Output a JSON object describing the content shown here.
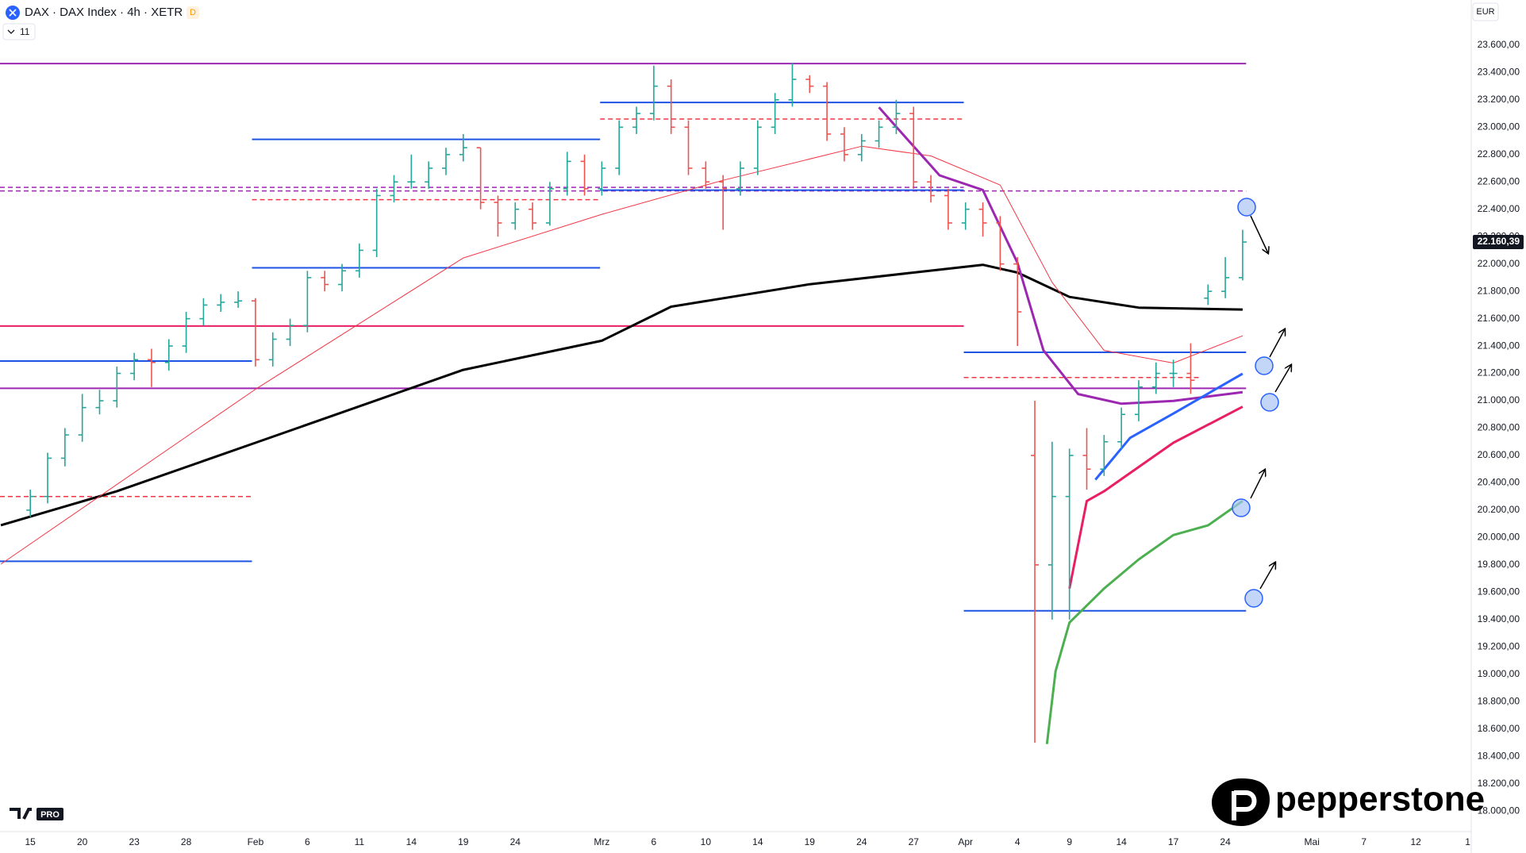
{
  "ui": {
    "badge": "D",
    "bars_count": "11",
    "currency": "EUR",
    "brand": "pepperstone",
    "tv_plan": "PRO"
  },
  "chart_data": {
    "type": "ohlc",
    "title": "DAX · DAX Index · 4h · XETR",
    "colors": {
      "up": "#26a69a",
      "down": "#ef5350"
    },
    "grid": false,
    "xlim": [
      -1.75,
      83.2
    ],
    "ylim": [
      17850,
      23930
    ],
    "xticks": [
      {
        "value": 0,
        "label": "15"
      },
      {
        "value": 3,
        "label": "20"
      },
      {
        "value": 6,
        "label": "23"
      },
      {
        "value": 9,
        "label": "28"
      },
      {
        "value": 13,
        "label": "Feb"
      },
      {
        "value": 16,
        "label": "6"
      },
      {
        "value": 19,
        "label": "11"
      },
      {
        "value": 22,
        "label": "14"
      },
      {
        "value": 25,
        "label": "19"
      },
      {
        "value": 28,
        "label": "24"
      },
      {
        "value": 33,
        "label": "Mrz"
      },
      {
        "value": 36,
        "label": "6"
      },
      {
        "value": 39,
        "label": "10"
      },
      {
        "value": 42,
        "label": "14"
      },
      {
        "value": 45,
        "label": "19"
      },
      {
        "value": 48,
        "label": "24"
      },
      {
        "value": 51,
        "label": "27"
      },
      {
        "value": 54,
        "label": "Apr"
      },
      {
        "value": 57,
        "label": "4"
      },
      {
        "value": 60,
        "label": "9"
      },
      {
        "value": 63,
        "label": "14"
      },
      {
        "value": 66,
        "label": "17"
      },
      {
        "value": 69,
        "label": "24"
      },
      {
        "value": 74,
        "label": "Mai"
      },
      {
        "value": 77,
        "label": "7"
      },
      {
        "value": 80,
        "label": "12"
      },
      {
        "value": 83,
        "label": "1"
      }
    ],
    "yticks": [
      {
        "value": 18000,
        "label": "18.000,00"
      },
      {
        "value": 18200,
        "label": "18.200,00"
      },
      {
        "value": 18400,
        "label": "18.400,00"
      },
      {
        "value": 18600,
        "label": "18.600,00"
      },
      {
        "value": 18800,
        "label": "18.800,00"
      },
      {
        "value": 19000,
        "label": "19.000,00"
      },
      {
        "value": 19200,
        "label": "19.200,00"
      },
      {
        "value": 19400,
        "label": "19.400,00"
      },
      {
        "value": 19600,
        "label": "19.600,00"
      },
      {
        "value": 19800,
        "label": "19.800,00"
      },
      {
        "value": 20000,
        "label": "20.000,00"
      },
      {
        "value": 20200,
        "label": "20.200,00"
      },
      {
        "value": 20400,
        "label": "20.400,00"
      },
      {
        "value": 20600,
        "label": "20.600,00"
      },
      {
        "value": 20800,
        "label": "20.800,00"
      },
      {
        "value": 21000,
        "label": "21.000,00"
      },
      {
        "value": 21200,
        "label": "21.200,00"
      },
      {
        "value": 21400,
        "label": "21.400,00"
      },
      {
        "value": 21600,
        "label": "21.600,00"
      },
      {
        "value": 21800,
        "label": "21.800,00"
      },
      {
        "value": 22000,
        "label": "22.000,00"
      },
      {
        "value": 22200,
        "label": "22.200,00"
      },
      {
        "value": 22400,
        "label": "22.400,00"
      },
      {
        "value": 22600,
        "label": "22.600,00"
      },
      {
        "value": 22800,
        "label": "22.800,00"
      },
      {
        "value": 23000,
        "label": "23.000,00"
      },
      {
        "value": 23200,
        "label": "23.200,00"
      },
      {
        "value": 23400,
        "label": "23.400,00"
      },
      {
        "value": 23600,
        "label": "23.600,00"
      }
    ],
    "last_price": {
      "value": 22160.39,
      "label": "22.160,39"
    },
    "x": [
      0,
      1,
      2,
      3,
      4,
      5,
      6,
      7,
      8,
      9,
      10,
      11,
      12,
      13,
      14,
      15,
      16,
      17,
      18,
      19,
      20,
      21,
      22,
      23,
      24,
      25,
      26,
      27,
      28,
      29,
      30,
      31,
      32,
      33,
      34,
      35,
      36,
      37,
      38,
      39,
      40,
      41,
      42,
      43,
      44,
      45,
      46,
      47,
      48,
      49,
      50,
      51,
      52,
      53,
      54,
      55,
      56,
      57,
      58,
      59,
      60,
      61,
      62,
      63,
      64,
      65,
      66,
      67,
      68,
      69,
      70
    ],
    "open": [
      20200,
      20300,
      20580,
      20750,
      20950,
      21000,
      21200,
      21300,
      21280,
      21400,
      21600,
      21700,
      21720,
      21730,
      21300,
      21450,
      21550,
      21900,
      21850,
      21950,
      22100,
      22500,
      22600,
      22600,
      22700,
      22800,
      22850,
      22450,
      22300,
      22400,
      22300,
      22550,
      22750,
      22550,
      22700,
      23000,
      23100,
      23300,
      23000,
      22700,
      22600,
      22550,
      22700,
      23000,
      23200,
      23350,
      23300,
      22950,
      22800,
      22900,
      23000,
      23100,
      22600,
      22500,
      22300,
      22400,
      22300,
      22000,
      20600,
      19800,
      20300,
      20600,
      20500,
      20700,
      20900,
      21100,
      21200,
      21200,
      21750,
      21800,
      21900
    ],
    "high": [
      20350,
      20620,
      20800,
      21050,
      21080,
      21250,
      21350,
      21380,
      21450,
      21650,
      21750,
      21780,
      21800,
      21750,
      21500,
      21600,
      21950,
      21950,
      22000,
      22150,
      22550,
      22650,
      22800,
      22750,
      22850,
      22950,
      22850,
      22500,
      22450,
      22450,
      22600,
      22820,
      22800,
      22750,
      23050,
      23150,
      23450,
      23350,
      23050,
      22750,
      22650,
      22750,
      23050,
      23250,
      23470,
      23380,
      23330,
      23000,
      22950,
      23050,
      23200,
      23150,
      22650,
      22550,
      22450,
      22450,
      22350,
      22050,
      21000,
      20700,
      20650,
      20800,
      20750,
      20950,
      21150,
      21280,
      21300,
      21420,
      21850,
      22050,
      22250
    ],
    "low": [
      20150,
      20250,
      20520,
      20700,
      20900,
      20950,
      21150,
      21100,
      21220,
      21350,
      21550,
      21650,
      21680,
      21250,
      21250,
      21400,
      21500,
      21800,
      21800,
      21900,
      22050,
      22450,
      22550,
      22550,
      22650,
      22750,
      22400,
      22200,
      22250,
      22250,
      22280,
      22500,
      22500,
      22500,
      22650,
      22950,
      23050,
      22950,
      22650,
      22550,
      22250,
      22500,
      22650,
      22950,
      23150,
      23250,
      22900,
      22750,
      22750,
      22850,
      22950,
      22550,
      22450,
      22250,
      22250,
      22200,
      21950,
      21400,
      18500,
      19400,
      19400,
      20350,
      20450,
      20650,
      20850,
      21050,
      21100,
      21050,
      21700,
      21750,
      21880
    ],
    "close": [
      20300,
      20580,
      20750,
      20950,
      21000,
      21200,
      21300,
      21280,
      21400,
      21600,
      21700,
      21720,
      21730,
      21300,
      21450,
      21550,
      21900,
      21850,
      21950,
      22100,
      22500,
      22600,
      22600,
      22700,
      22800,
      22850,
      22450,
      22300,
      22400,
      22300,
      22550,
      22750,
      22550,
      22700,
      23000,
      23100,
      23300,
      23000,
      22700,
      22600,
      22550,
      22700,
      23000,
      23200,
      23350,
      23300,
      22950,
      22800,
      22900,
      23000,
      23100,
      22600,
      22500,
      22300,
      22400,
      22300,
      22000,
      21650,
      19800,
      20300,
      20600,
      20500,
      20700,
      20900,
      21100,
      21200,
      21200,
      21150,
      21800,
      21900,
      22160.39
    ],
    "series": [
      {
        "color": "#000000",
        "width": 3,
        "x": [
          -1.7,
          5,
          13,
          25,
          33,
          37,
          45,
          51,
          55,
          57,
          60,
          64,
          70
        ],
        "values": [
          20090,
          20338,
          20693,
          21226,
          21439,
          21688,
          21852,
          21937,
          21994,
          21937,
          21759,
          21681,
          21667
        ]
      },
      {
        "color": "#f23645",
        "width": 1,
        "x": [
          -1.7,
          13,
          25,
          33,
          40,
          48,
          52,
          56,
          59,
          62,
          66,
          70
        ],
        "values": [
          19805,
          21084,
          22044,
          22363,
          22612,
          22861,
          22790,
          22577,
          21866,
          21368,
          21276,
          21475
        ]
      },
      {
        "color": "#9c27b0",
        "width": 3,
        "x": [
          49,
          51,
          52.5,
          55,
          57,
          58.5,
          60.5,
          63,
          66,
          70
        ],
        "values": [
          23145,
          22861,
          22648,
          22541,
          22008,
          21368,
          21049,
          20978,
          20999,
          21063
        ]
      },
      {
        "color": "#e91e63",
        "width": 3,
        "x": [
          60,
          61,
          62,
          64,
          66,
          70
        ],
        "values": [
          19627,
          20267,
          20338,
          20516,
          20693,
          20956
        ]
      },
      {
        "color": "#2962ff",
        "width": 3,
        "x": [
          61.5,
          63.5,
          66,
          70
        ],
        "values": [
          20423,
          20729,
          20906,
          21198
        ]
      },
      {
        "color": "#4caf50",
        "width": 3,
        "x": [
          58.7,
          59.2,
          60,
          62,
          64,
          66,
          68,
          70
        ],
        "values": [
          18490,
          19023,
          19378,
          19627,
          19840,
          20018,
          20089,
          20267
        ]
      }
    ],
    "levels": [
      {
        "value": 23465,
        "from": -1.75,
        "to": 70.2,
        "color": "#9c27b0",
        "style": "solid"
      },
      {
        "value": 22534,
        "from": -1.75,
        "to": 70.2,
        "color": "#9c27b0",
        "style": "dashed"
      },
      {
        "value": 22560,
        "from": -1.75,
        "to": 53.9,
        "color": "#9c27b0",
        "style": "dashed"
      },
      {
        "value": 21091,
        "from": -1.75,
        "to": 70.2,
        "color": "#9c27b0",
        "style": "solid"
      },
      {
        "value": 21546,
        "from": -1.75,
        "to": 53.9,
        "color": "#e91e63",
        "style": "solid"
      },
      {
        "value": 23181,
        "from": 32.9,
        "to": 53.9,
        "color": "#1e53e5",
        "style": "solid"
      },
      {
        "value": 22540,
        "from": 32.9,
        "to": 53.9,
        "color": "#1e53e5",
        "style": "solid"
      },
      {
        "value": 22911,
        "from": 12.8,
        "to": 32.9,
        "color": "#1e53e5",
        "style": "solid"
      },
      {
        "value": 21972,
        "from": 12.8,
        "to": 32.9,
        "color": "#1e53e5",
        "style": "solid"
      },
      {
        "value": 21290,
        "from": -1.75,
        "to": 12.8,
        "color": "#1e53e5",
        "style": "solid"
      },
      {
        "value": 19826,
        "from": -1.75,
        "to": 12.8,
        "color": "#1e53e5",
        "style": "solid"
      },
      {
        "value": 21354,
        "from": 53.9,
        "to": 70.2,
        "color": "#1e53e5",
        "style": "solid"
      },
      {
        "value": 19464,
        "from": 53.9,
        "to": 70.2,
        "color": "#1e53e5",
        "style": "solid"
      },
      {
        "value": 23060,
        "from": 32.9,
        "to": 53.9,
        "color": "#f23645",
        "style": "dashed"
      },
      {
        "value": 22470,
        "from": 12.8,
        "to": 32.9,
        "color": "#f23645",
        "style": "dashed"
      },
      {
        "value": 20300,
        "from": -1.75,
        "to": 12.8,
        "color": "#f23645",
        "style": "dashed"
      },
      {
        "value": 21170,
        "from": 53.9,
        "to": 67.5,
        "color": "#f23645",
        "style": "dashed"
      }
    ]
  }
}
